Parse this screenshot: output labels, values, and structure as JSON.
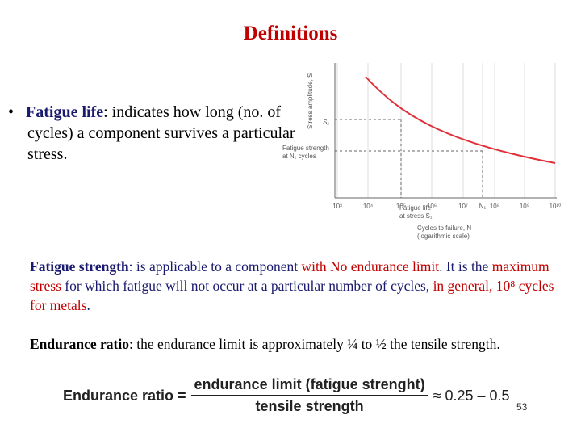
{
  "title": "Definitions",
  "bullet": {
    "term": "Fatigue life",
    "text": ": indicates how long (no. of cycles) a component survives a particular stress."
  },
  "figure": {
    "y_label": "Stress amplitude, S",
    "s1": "S₁",
    "fatigue_strength_label": [
      "Fatigue strength",
      "at N₁ cycles"
    ],
    "x_ticks": [
      "10³",
      "10⁴",
      "10⁵",
      "10⁶",
      "10⁷",
      "N₁",
      "10⁸",
      "10⁹",
      "10¹⁰"
    ],
    "fatigue_life_label": [
      "Fatigue life",
      "at stress S₁"
    ],
    "x_label": [
      "Cycles to failure, N",
      "(logarithmic scale)"
    ]
  },
  "fatigue_strength": [
    {
      "text": "Fatigue strength",
      "color": "#1a1a6e",
      "bold": true
    },
    {
      "text": ": is applicable to a component ",
      "color": "#1a1a6e"
    },
    {
      "text": "with No endurance limit",
      "color": "#c00000"
    },
    {
      "text": ". It is the ",
      "color": "#1a1a6e"
    },
    {
      "text": "maximum stress",
      "color": "#c00000"
    },
    {
      "text": " for which fatigue will not occur at a particular number of cycles, ",
      "color": "#1a1a6e"
    },
    {
      "text": "in general, 10⁸ cycles for metals",
      "color": "#c00000"
    },
    {
      "text": ".",
      "color": "#1a1a6e"
    }
  ],
  "endurance_ratio": {
    "term": "Endurance ratio",
    "text": ": the endurance limit is approximately ¼ to ½ the tensile strength."
  },
  "formula": {
    "lhs": "Endurance ratio =",
    "numerator": "endurance limit (fatigue strenght)",
    "denominator": "tensile strength",
    "rhs": "≈ 0.25 – 0.5"
  },
  "page_number": "53"
}
